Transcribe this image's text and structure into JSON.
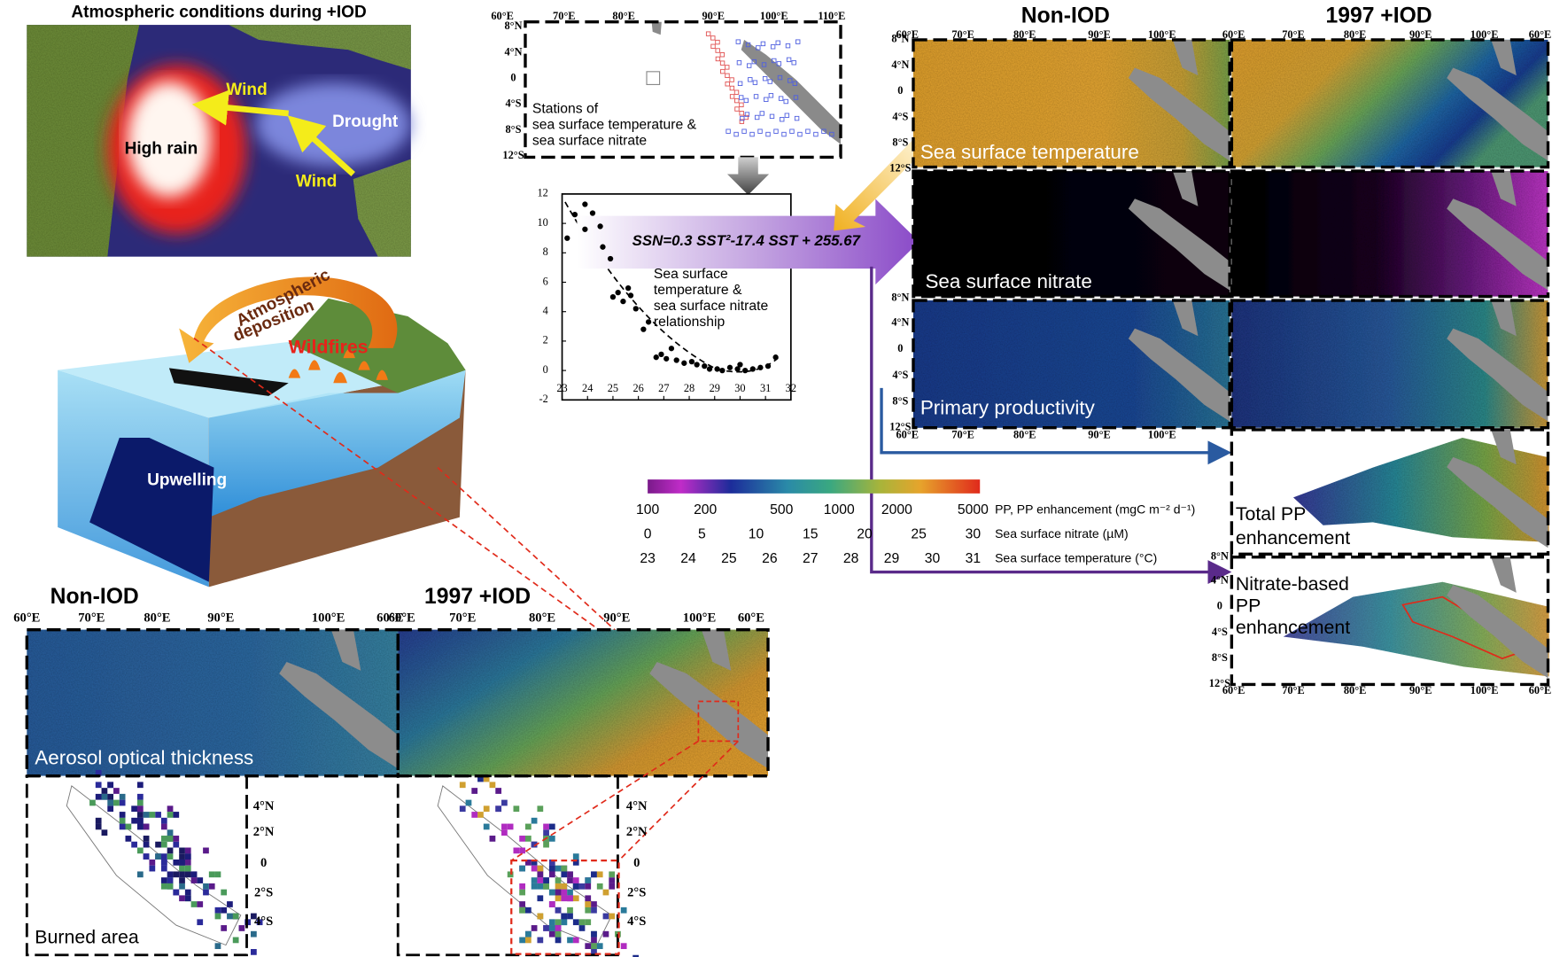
{
  "atmosphere": {
    "title": "Atmospheric conditions during +IOD",
    "wind_1": "Wind",
    "wind_2": "Wind",
    "high_rain": "High rain",
    "drought": "Drought"
  },
  "schematic": {
    "deposition": [
      "Atmospheric",
      "deposition"
    ],
    "wildfires": "Wildfires",
    "upwelling": "Upwelling"
  },
  "stations": {
    "label": [
      "Stations of",
      "sea surface temperature &",
      "sea surface nitrate"
    ],
    "lon_ticks": [
      "60°E",
      "70°E",
      "80°E",
      "90°E",
      "100°E",
      "110°E"
    ],
    "lat_ticks": [
      "8°N",
      "4°N",
      "0",
      "4°S",
      "8°S",
      "12°S"
    ]
  },
  "equation": "SSN=0.3 SST²-17.4 SST + 255.67",
  "chart_data": {
    "type": "scatter",
    "annotation": [
      "Sea surface",
      "temperature &",
      "sea surface nitrate",
      "relationship"
    ],
    "x": [
      23.2,
      23.5,
      23.9,
      24.2,
      23.9,
      24.5,
      24.6,
      24.9,
      25.0,
      25.2,
      25.4,
      25.6,
      25.7,
      25.9,
      26.2,
      26.4,
      26.7,
      26.9,
      27.1,
      27.3,
      27.5,
      27.8,
      28.1,
      28.3,
      28.6,
      28.8,
      29.1,
      29.3,
      29.6,
      29.9,
      30.2,
      30.5,
      30.8,
      31.1,
      31.4,
      30.0
    ],
    "values": [
      9.0,
      10.6,
      11.3,
      10.7,
      9.6,
      9.8,
      8.4,
      7.6,
      5.0,
      5.3,
      4.7,
      5.6,
      5.1,
      4.2,
      2.8,
      3.3,
      0.9,
      1.1,
      0.8,
      1.5,
      0.7,
      0.5,
      0.6,
      0.4,
      0.3,
      0.1,
      0.1,
      0.0,
      0.2,
      0.1,
      0.0,
      0.1,
      0.2,
      0.3,
      0.9,
      0.4
    ],
    "color": "#000000",
    "xlim": [
      23,
      32
    ],
    "ylim": [
      -2,
      12
    ],
    "xticks": [
      23,
      24,
      25,
      26,
      27,
      28,
      29,
      30,
      31,
      32
    ],
    "yticks": [
      -2,
      0,
      2,
      4,
      6,
      8,
      10,
      12
    ]
  },
  "ocean_maps": {
    "columns": [
      "Non-IOD",
      "1997 +IOD"
    ],
    "rows": [
      "Sea surface temperature",
      "Sea surface nitrate",
      "Primary productivity"
    ],
    "total_pp": [
      "Total PP",
      "enhancement"
    ],
    "nitrate_pp": [
      "Nitrate-based",
      "PP",
      "enhancement"
    ],
    "lon_ticks_left": [
      "60°E",
      "70°E",
      "80°E",
      "90°E",
      "100°E"
    ],
    "lon_ticks_right": [
      "60°E",
      "70°E",
      "80°E",
      "90°E",
      "100°E",
      "60°E"
    ],
    "lat_ticks": [
      "8°N",
      "4°N",
      "0",
      "4°S",
      "8°S",
      "12°S"
    ]
  },
  "colorbar": {
    "scales": [
      {
        "label": "PP, PP enhancement (mgC m⁻² d⁻¹)",
        "ticks": [
          100,
          200,
          500,
          1000,
          2000,
          5000
        ],
        "lim": [
          100,
          5000
        ],
        "log": true
      },
      {
        "label": "Sea surface nitrate (µM)",
        "ticks": [
          0,
          5,
          10,
          15,
          20,
          25,
          30
        ],
        "lim": [
          0,
          30
        ],
        "log": false
      },
      {
        "label": "Sea surface temperature (°C)",
        "ticks": [
          23,
          24,
          25,
          26,
          27,
          28,
          29,
          30,
          31
        ],
        "lim": [
          23,
          31
        ],
        "log": false
      }
    ]
  },
  "aerosol": {
    "columns": [
      "Non-IOD",
      "1997 +IOD"
    ],
    "aot_label": "Aerosol optical thickness",
    "burned_label": "Burned area",
    "lon_ticks": [
      "60°E",
      "70°E",
      "80°E",
      "90°E",
      "100°E",
      "60°E"
    ],
    "lat_ticks": [
      "4°N",
      "2°N",
      "0",
      "2°S",
      "4°S"
    ]
  }
}
